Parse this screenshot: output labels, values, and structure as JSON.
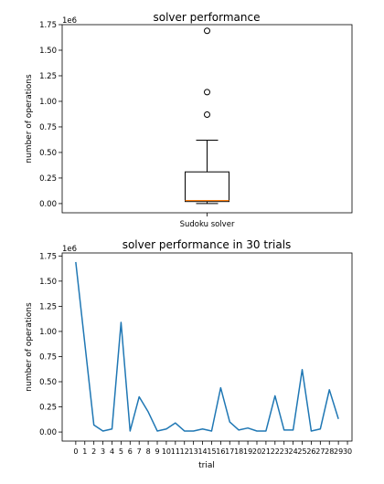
{
  "chart_data": [
    {
      "type": "box",
      "title": "solver performance",
      "xlabel": "",
      "ylabel": "number of operations",
      "y_offset_label": "1e6",
      "categories": [
        "Sudoku solver"
      ],
      "yticks": [
        0.0,
        0.25,
        0.5,
        0.75,
        1.0,
        1.25,
        1.5,
        1.75
      ],
      "ytick_labels": [
        "0.00",
        "0.25",
        "0.50",
        "0.75",
        "1.00",
        "1.25",
        "1.50",
        "1.75"
      ],
      "ylim": [
        -0.09,
        1.75
      ],
      "box": {
        "whisker_low": 0.0,
        "q1": 0.02,
        "median": 0.03,
        "q3": 0.31,
        "whisker_high": 0.62,
        "outliers": [
          1.69,
          1.09,
          0.87
        ]
      },
      "colors": {
        "box": "#000000",
        "median": "#ff7f0e"
      }
    },
    {
      "type": "line",
      "title": "solver performance in 30 trials",
      "xlabel": "trial",
      "ylabel": "number of operations",
      "y_offset_label": "1e6",
      "xticks": [
        0,
        1,
        2,
        3,
        4,
        5,
        6,
        7,
        8,
        9,
        10,
        11,
        12,
        13,
        14,
        15,
        16,
        17,
        18,
        19,
        20,
        21,
        22,
        23,
        24,
        25,
        26,
        27,
        28,
        29,
        30
      ],
      "xlim": [
        -1.5,
        30.5
      ],
      "yticks": [
        0.0,
        0.25,
        0.5,
        0.75,
        1.0,
        1.25,
        1.5,
        1.75
      ],
      "ytick_labels": [
        "0.00",
        "0.25",
        "0.50",
        "0.75",
        "1.00",
        "1.25",
        "1.50",
        "1.75"
      ],
      "ylim": [
        -0.09,
        1.78
      ],
      "x": [
        0,
        1,
        2,
        3,
        4,
        5,
        6,
        7,
        8,
        9,
        10,
        11,
        12,
        13,
        14,
        15,
        16,
        17,
        18,
        19,
        20,
        21,
        22,
        23,
        24,
        25,
        26,
        27,
        28,
        29
      ],
      "values": [
        1.69,
        0.88,
        0.07,
        0.01,
        0.03,
        1.09,
        0.01,
        0.35,
        0.2,
        0.01,
        0.03,
        0.09,
        0.01,
        0.01,
        0.03,
        0.01,
        0.44,
        0.1,
        0.02,
        0.04,
        0.01,
        0.01,
        0.36,
        0.02,
        0.02,
        0.62,
        0.01,
        0.03,
        0.42,
        0.13
      ],
      "colors": {
        "line": "#1f77b4"
      }
    }
  ]
}
